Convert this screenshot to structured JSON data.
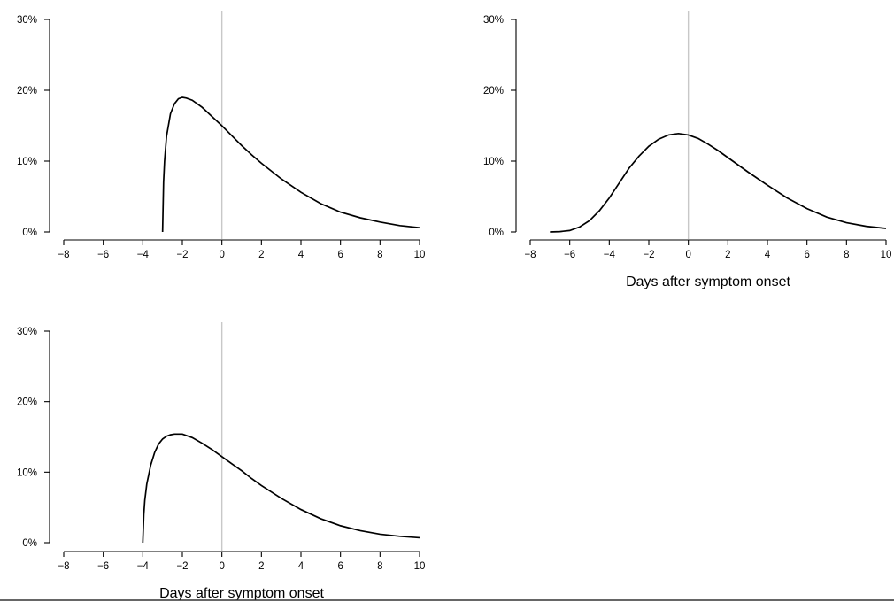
{
  "chart_data": [
    {
      "type": "line",
      "xlabel": "",
      "ylabel": "",
      "xlim": [
        -8,
        10
      ],
      "ylim": [
        0,
        0.3
      ],
      "x_ticks": [
        -8,
        -6,
        -4,
        -2,
        0,
        2,
        4,
        6,
        8,
        10
      ],
      "x_tick_labels": [
        "−8",
        "−6",
        "−4",
        "−2",
        "0",
        "2",
        "4",
        "6",
        "8",
        "10"
      ],
      "y_ticks": [
        0,
        0.1,
        0.2,
        0.3
      ],
      "y_tick_labels": [
        "0%",
        "10%",
        "20%",
        "30%"
      ],
      "reference_line_x": 0,
      "grid": false,
      "series": [
        {
          "x": [
            -3.0,
            -2.95,
            -2.9,
            -2.8,
            -2.6,
            -2.4,
            -2.2,
            -2.0,
            -1.8,
            -1.5,
            -1.0,
            -0.5,
            0,
            0.5,
            1,
            1.5,
            2,
            3,
            4,
            5,
            6,
            7,
            8,
            9,
            10
          ],
          "y": [
            0.0,
            0.07,
            0.1,
            0.135,
            0.167,
            0.181,
            0.188,
            0.19,
            0.189,
            0.186,
            0.176,
            0.163,
            0.15,
            0.136,
            0.122,
            0.109,
            0.097,
            0.075,
            0.056,
            0.04,
            0.028,
            0.02,
            0.014,
            0.009,
            0.006
          ]
        }
      ]
    },
    {
      "type": "line",
      "xlabel": "Days after symptom onset",
      "ylabel": "",
      "xlim": [
        -8,
        10
      ],
      "ylim": [
        0,
        0.3
      ],
      "x_ticks": [
        -8,
        -6,
        -4,
        -2,
        0,
        2,
        4,
        6,
        8,
        10
      ],
      "x_tick_labels": [
        "−8",
        "−6",
        "−4",
        "−2",
        "0",
        "2",
        "4",
        "6",
        "8",
        "10"
      ],
      "y_ticks": [
        0,
        0.1,
        0.2,
        0.3
      ],
      "y_tick_labels": [
        "0%",
        "10%",
        "20%",
        "30%"
      ],
      "reference_line_x": 0,
      "grid": false,
      "series": [
        {
          "x": [
            -7,
            -6.5,
            -6,
            -5.5,
            -5,
            -4.5,
            -4,
            -3.5,
            -3,
            -2.5,
            -2,
            -1.5,
            -1,
            -0.5,
            0,
            0.5,
            1,
            1.5,
            2,
            3,
            4,
            5,
            6,
            7,
            8,
            9,
            10
          ],
          "y": [
            0.0,
            0.0005,
            0.002,
            0.007,
            0.016,
            0.03,
            0.048,
            0.069,
            0.09,
            0.107,
            0.121,
            0.131,
            0.137,
            0.139,
            0.137,
            0.132,
            0.124,
            0.115,
            0.105,
            0.085,
            0.066,
            0.048,
            0.033,
            0.021,
            0.013,
            0.008,
            0.005
          ]
        }
      ]
    },
    {
      "type": "line",
      "xlabel": "Days after symptom onset",
      "ylabel": "",
      "xlim": [
        -8,
        10
      ],
      "ylim": [
        0,
        0.3
      ],
      "x_ticks": [
        -8,
        -6,
        -4,
        -2,
        0,
        2,
        4,
        6,
        8,
        10
      ],
      "x_tick_labels": [
        "−8",
        "−6",
        "−4",
        "−2",
        "0",
        "2",
        "4",
        "6",
        "8",
        "10"
      ],
      "y_ticks": [
        0,
        0.1,
        0.2,
        0.3
      ],
      "y_tick_labels": [
        "0%",
        "10%",
        "20%",
        "30%"
      ],
      "reference_line_x": 0,
      "grid": false,
      "series": [
        {
          "x": [
            -4.0,
            -3.95,
            -3.9,
            -3.8,
            -3.6,
            -3.4,
            -3.2,
            -3.0,
            -2.8,
            -2.6,
            -2.4,
            -2.2,
            -2.0,
            -1.5,
            -1.0,
            -0.5,
            0,
            0.5,
            1,
            1.5,
            2,
            3,
            4,
            5,
            6,
            7,
            8,
            9,
            10
          ],
          "y": [
            0.0,
            0.04,
            0.06,
            0.083,
            0.11,
            0.128,
            0.14,
            0.147,
            0.151,
            0.153,
            0.154,
            0.154,
            0.154,
            0.149,
            0.141,
            0.132,
            0.122,
            0.112,
            0.102,
            0.091,
            0.081,
            0.063,
            0.047,
            0.034,
            0.024,
            0.017,
            0.012,
            0.009,
            0.007
          ]
        }
      ]
    }
  ]
}
